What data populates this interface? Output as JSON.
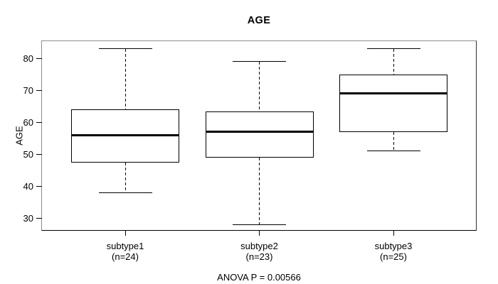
{
  "chart_data": {
    "type": "boxplot",
    "title": "AGE",
    "ylabel": "AGE",
    "xlabel": "",
    "yticks": [
      30,
      40,
      50,
      60,
      70,
      80
    ],
    "ylim": [
      26,
      86
    ],
    "grid": false,
    "legend_position": "none",
    "categories": [
      "subtype1",
      "subtype2",
      "subtype3"
    ],
    "groups": [
      {
        "label": "subtype1",
        "sublabel": "(n=24)",
        "n": 24,
        "whisker_low": 38,
        "q1": 47.5,
        "median": 56,
        "q3": 64,
        "whisker_high": 83
      },
      {
        "label": "subtype2",
        "sublabel": "(n=23)",
        "n": 23,
        "whisker_low": 28,
        "q1": 49,
        "median": 57,
        "q3": 63.5,
        "whisker_high": 79
      },
      {
        "label": "subtype3",
        "sublabel": "(n=25)",
        "n": 25,
        "whisker_low": 51,
        "q1": 57,
        "median": 69,
        "q3": 75,
        "whisker_high": 83
      }
    ],
    "annotation": "ANOVA P = 0.00566"
  }
}
